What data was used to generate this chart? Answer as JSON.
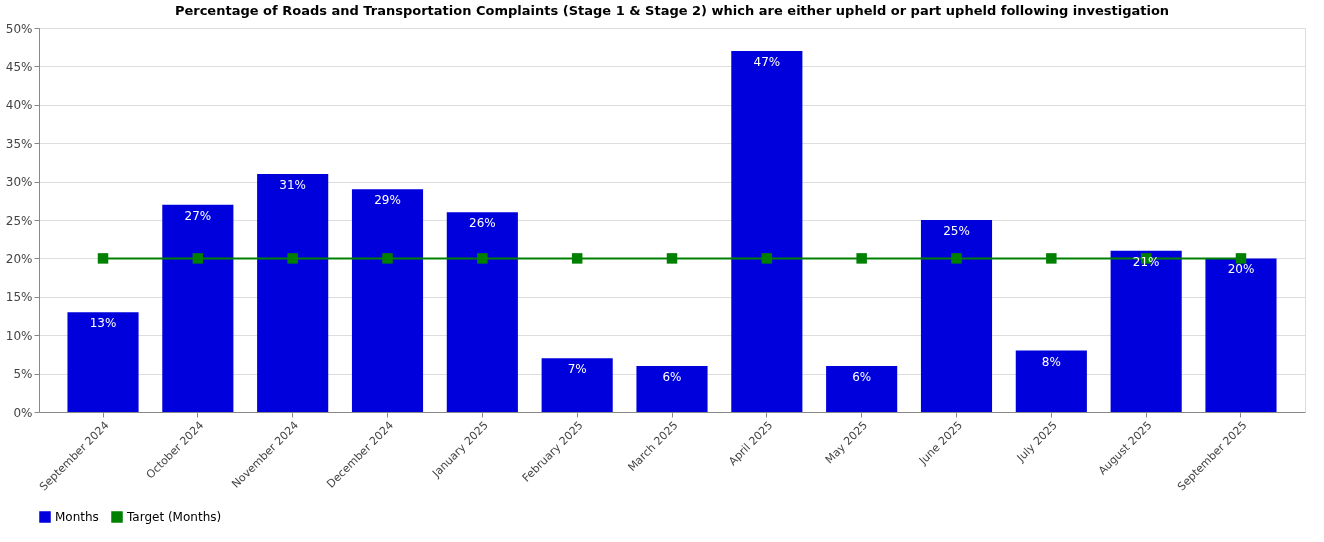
{
  "chart_data": {
    "type": "bar",
    "title": "Percentage of Roads and Transportation Complaints (Stage 1 & Stage 2) which are either upheld or part upheld following investigation",
    "categories": [
      "September 2024",
      "October 2024",
      "November 2024",
      "December 2024",
      "January 2025",
      "February 2025",
      "March 2025",
      "April 2025",
      "May 2025",
      "June 2025",
      "July 2025",
      "August 2025",
      "September 2025"
    ],
    "series": [
      {
        "name": "Months",
        "color": "#0000dd",
        "values": [
          13,
          27,
          31,
          29,
          26,
          7,
          6,
          47,
          6,
          25,
          8,
          21,
          20
        ],
        "value_labels": [
          "13%",
          "27%",
          "31%",
          "29%",
          "26%",
          "7%",
          "6%",
          "47%",
          "6%",
          "25%",
          "8%",
          "21%",
          "20%"
        ]
      },
      {
        "name": "Target (Months)",
        "type": "line",
        "color": "#008000",
        "values": [
          20,
          20,
          20,
          20,
          20,
          20,
          20,
          20,
          20,
          20,
          20,
          20,
          20
        ],
        "marker": "square"
      }
    ],
    "ylim": [
      0,
      50
    ],
    "yticks": [
      {
        "value": 0,
        "label": "0%"
      },
      {
        "value": 5,
        "label": "5%"
      },
      {
        "value": 10,
        "label": "10%"
      },
      {
        "value": 15,
        "label": "15%"
      },
      {
        "value": 20,
        "label": "20%"
      },
      {
        "value": 25,
        "label": "25%"
      },
      {
        "value": 30,
        "label": "30%"
      },
      {
        "value": 35,
        "label": "35%"
      },
      {
        "value": 40,
        "label": "40%"
      },
      {
        "value": 45,
        "label": "45%"
      },
      {
        "value": 50,
        "label": "50%"
      }
    ],
    "grid": "y",
    "legend": "bottom"
  }
}
